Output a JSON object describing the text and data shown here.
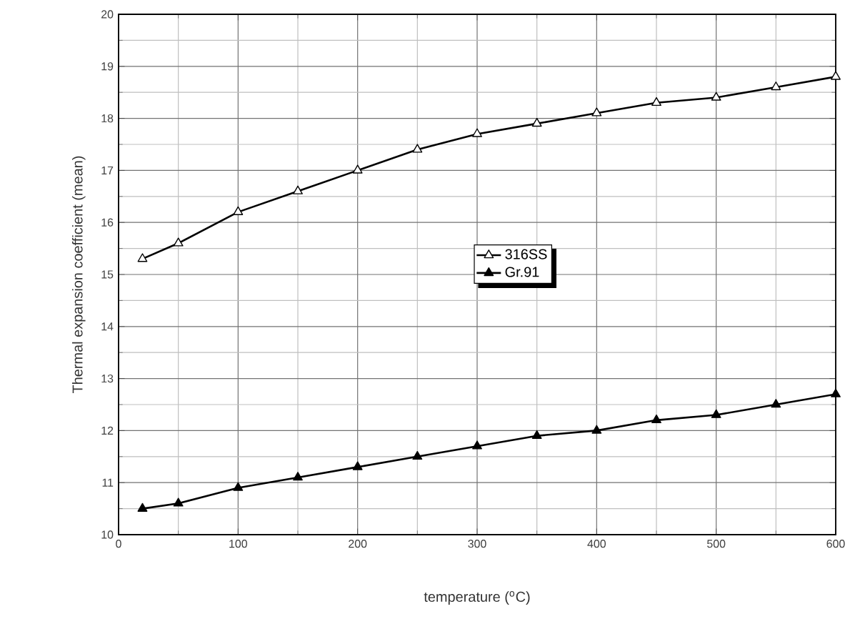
{
  "chart_data": {
    "type": "line",
    "xlabel": "temperature ($^{o}$C)",
    "ylabel": "Thermal expansion coefficient (mean)",
    "x": [
      20,
      50,
      100,
      150,
      200,
      250,
      300,
      350,
      400,
      450,
      500,
      550,
      600
    ],
    "series": [
      {
        "name": "316SS",
        "color": "#000000",
        "values": [
          15.3,
          15.6,
          16.2,
          16.6,
          17.0,
          17.4,
          17.7,
          17.9,
          18.1,
          18.3,
          18.4,
          18.6,
          18.8
        ]
      },
      {
        "name": "Gr.91",
        "color": "#000000",
        "values": [
          10.5,
          10.6,
          10.9,
          11.1,
          11.3,
          11.5,
          11.7,
          11.9,
          12.0,
          12.2,
          12.3,
          12.5,
          12.7
        ]
      }
    ],
    "xlim": [
      0,
      600
    ],
    "ylim": [
      10,
      20
    ],
    "xticks": [
      0,
      100,
      200,
      300,
      400,
      500,
      600
    ],
    "yticks": [
      10,
      11,
      12,
      13,
      14,
      15,
      16,
      17,
      18,
      19,
      20
    ],
    "grid": true,
    "legend": "center",
    "marker": "triangle",
    "line_style": "solid"
  }
}
